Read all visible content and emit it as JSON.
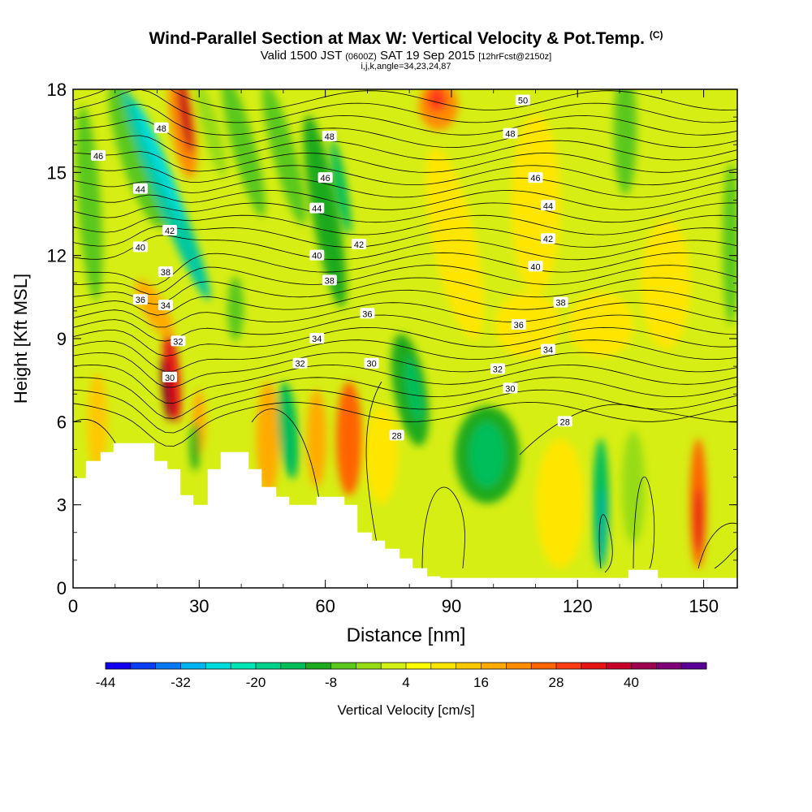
{
  "header": {
    "title": "Wind-Parallel Section at Max W: Vertical Velocity & Pot.Temp.",
    "title_mark": "(C)",
    "valid_main": "Valid 1500 JST",
    "valid_utc": "(0600Z)",
    "valid_date": "SAT 19 Sep 2015",
    "forecast": "[12hrFcst@2150z]",
    "indices": "i,j,k,angle=34,23,24,87"
  },
  "chart_data": {
    "type": "heatmap",
    "xlabel": "Distance [nm]",
    "ylabel": "Height [Kft MSL]",
    "xlim": [
      0,
      158
    ],
    "ylim": [
      0,
      18
    ],
    "x_ticks": [
      "0",
      "30",
      "60",
      "90",
      "120",
      "150"
    ],
    "y_ticks": [
      "0",
      "3",
      "6",
      "9",
      "12",
      "15",
      "18"
    ],
    "colorbar": {
      "label": "Vertical Velocity [cm/s]",
      "tick_labels": [
        "-44",
        "-32",
        "-20",
        "-8",
        "4",
        "16",
        "28",
        "40"
      ],
      "colors": [
        "#1400f0",
        "#0a3cf5",
        "#0a78f5",
        "#00b4f0",
        "#00dcdc",
        "#00e6b4",
        "#00d28c",
        "#00be5a",
        "#1eaa1e",
        "#5ac81e",
        "#96dc14",
        "#d2f014",
        "#ffff00",
        "#ffe600",
        "#ffc800",
        "#ffaa00",
        "#ff8c00",
        "#ff6400",
        "#ff3c14",
        "#e61414",
        "#c80028",
        "#a00050",
        "#800078",
        "#5a0096"
      ]
    },
    "isentrope_labels": [
      {
        "x": 6,
        "z": 15.6,
        "label": "46"
      },
      {
        "x": 21,
        "z": 16.6,
        "label": "48"
      },
      {
        "x": 16,
        "z": 14.4,
        "label": "44"
      },
      {
        "x": 16,
        "z": 12.3,
        "label": "40"
      },
      {
        "x": 23,
        "z": 12.9,
        "label": "42"
      },
      {
        "x": 22,
        "z": 11.4,
        "label": "38"
      },
      {
        "x": 16,
        "z": 10.4,
        "label": "36"
      },
      {
        "x": 22,
        "z": 10.2,
        "label": "34"
      },
      {
        "x": 25,
        "z": 8.9,
        "label": "32"
      },
      {
        "x": 23,
        "z": 7.6,
        "label": "30"
      },
      {
        "x": 61,
        "z": 16.3,
        "label": "48"
      },
      {
        "x": 60,
        "z": 14.8,
        "label": "46"
      },
      {
        "x": 58,
        "z": 13.7,
        "label": "44"
      },
      {
        "x": 68,
        "z": 12.4,
        "label": "42"
      },
      {
        "x": 58,
        "z": 12.0,
        "label": "40"
      },
      {
        "x": 61,
        "z": 11.1,
        "label": "38"
      },
      {
        "x": 70,
        "z": 9.9,
        "label": "36"
      },
      {
        "x": 58,
        "z": 9.0,
        "label": "34"
      },
      {
        "x": 54,
        "z": 8.1,
        "label": "32"
      },
      {
        "x": 71,
        "z": 8.1,
        "label": "30"
      },
      {
        "x": 77,
        "z": 5.5,
        "label": "28"
      },
      {
        "x": 107,
        "z": 17.6,
        "label": "50"
      },
      {
        "x": 104,
        "z": 16.4,
        "label": "48"
      },
      {
        "x": 110,
        "z": 14.8,
        "label": "46"
      },
      {
        "x": 113,
        "z": 13.8,
        "label": "44"
      },
      {
        "x": 113,
        "z": 12.6,
        "label": "42"
      },
      {
        "x": 110,
        "z": 11.6,
        "label": "40"
      },
      {
        "x": 116,
        "z": 10.3,
        "label": "38"
      },
      {
        "x": 106,
        "z": 9.5,
        "label": "36"
      },
      {
        "x": 113,
        "z": 8.6,
        "label": "34"
      },
      {
        "x": 101,
        "z": 7.9,
        "label": "32"
      },
      {
        "x": 104,
        "z": 7.2,
        "label": "30"
      },
      {
        "x": 117,
        "z": 6.0,
        "label": "28"
      }
    ]
  }
}
